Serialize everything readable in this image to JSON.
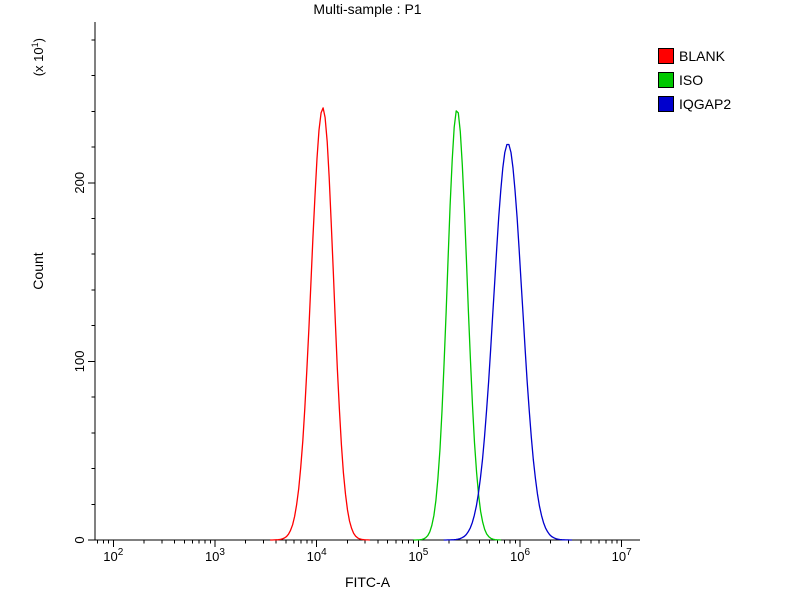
{
  "chart_data": {
    "type": "line",
    "subtype": "flow-cytometry-histogram-overlay",
    "title": "Multi-sample : P1",
    "xlabel": "FITC-A",
    "ylabel": "Count",
    "y_scale": {
      "prefix": "(x 10",
      "exp": "1",
      "suffix": ")"
    },
    "x_scale": "log10",
    "xlim": [
      100,
      10000000
    ],
    "ylim": [
      0,
      290
    ],
    "y_ticks": [
      {
        "value": 0,
        "label": "0"
      },
      {
        "value": 100,
        "label": "100"
      },
      {
        "value": 200,
        "label": "200"
      }
    ],
    "y_minor_tick_step": 20,
    "x_ticks": [
      {
        "value": 100,
        "base": "10",
        "exp": "2"
      },
      {
        "value": 1000,
        "base": "10",
        "exp": "3"
      },
      {
        "value": 10000,
        "base": "10",
        "exp": "4"
      },
      {
        "value": 100000,
        "base": "10",
        "exp": "5"
      },
      {
        "value": 1000000,
        "base": "10",
        "exp": "6"
      },
      {
        "value": 10000000,
        "base": "10",
        "exp": "7"
      }
    ],
    "legend_position": "top-right",
    "series": [
      {
        "name": "BLANK",
        "color": "#ff0000",
        "peak_x": 11500,
        "peak_y": 242,
        "sigma_left_dex": 0.115,
        "sigma_right_dex": 0.105
      },
      {
        "name": "ISO",
        "color": "#00c800",
        "peak_x": 240000,
        "peak_y": 241,
        "sigma_left_dex": 0.095,
        "sigma_right_dex": 0.1
      },
      {
        "name": "IQGAP2",
        "color": "#0000cd",
        "peak_x": 760000,
        "peak_y": 222,
        "sigma_left_dex": 0.14,
        "sigma_right_dex": 0.14
      }
    ]
  }
}
